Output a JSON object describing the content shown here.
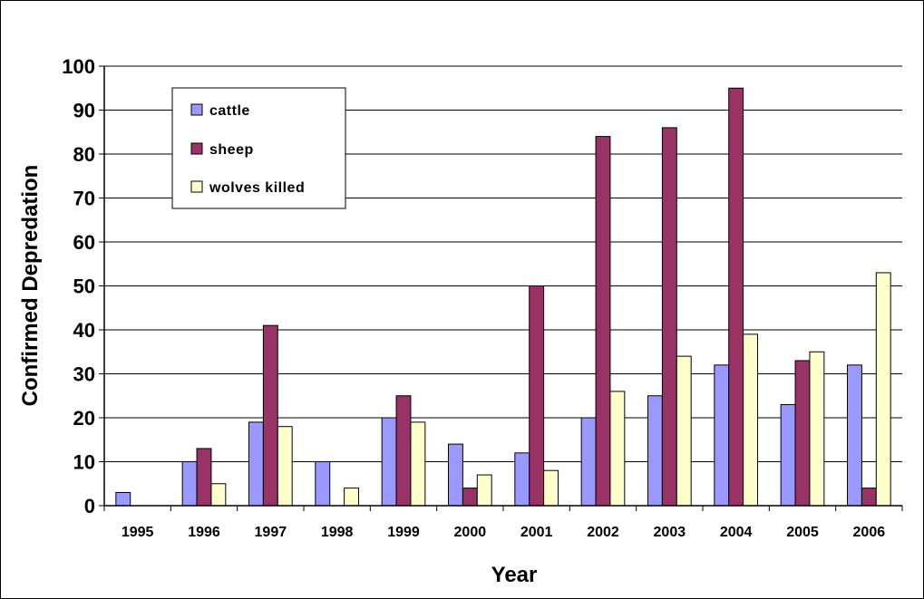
{
  "chart_data": {
    "type": "bar",
    "title": "",
    "xlabel": "Year",
    "ylabel": "Confirmed Depredation",
    "ylim": [
      0,
      100
    ],
    "yticks": [
      0,
      10,
      20,
      30,
      40,
      50,
      60,
      70,
      80,
      90,
      100
    ],
    "grid": true,
    "legend_position": "top-left",
    "categories": [
      "1995",
      "1996",
      "1997",
      "1998",
      "1999",
      "2000",
      "2001",
      "2002",
      "2003",
      "2004",
      "2005",
      "2006"
    ],
    "series": [
      {
        "name": "cattle",
        "color": "#9999FF",
        "values": [
          3,
          10,
          19,
          10,
          20,
          14,
          12,
          20,
          25,
          32,
          23,
          32
        ]
      },
      {
        "name": "sheep",
        "color": "#993366",
        "values": [
          0,
          13,
          41,
          0,
          25,
          4,
          50,
          84,
          86,
          95,
          33,
          4
        ]
      },
      {
        "name": "wolves killed",
        "color": "#FFFFCC",
        "values": [
          0,
          5,
          18,
          4,
          19,
          7,
          8,
          26,
          34,
          39,
          35,
          53
        ]
      }
    ]
  }
}
